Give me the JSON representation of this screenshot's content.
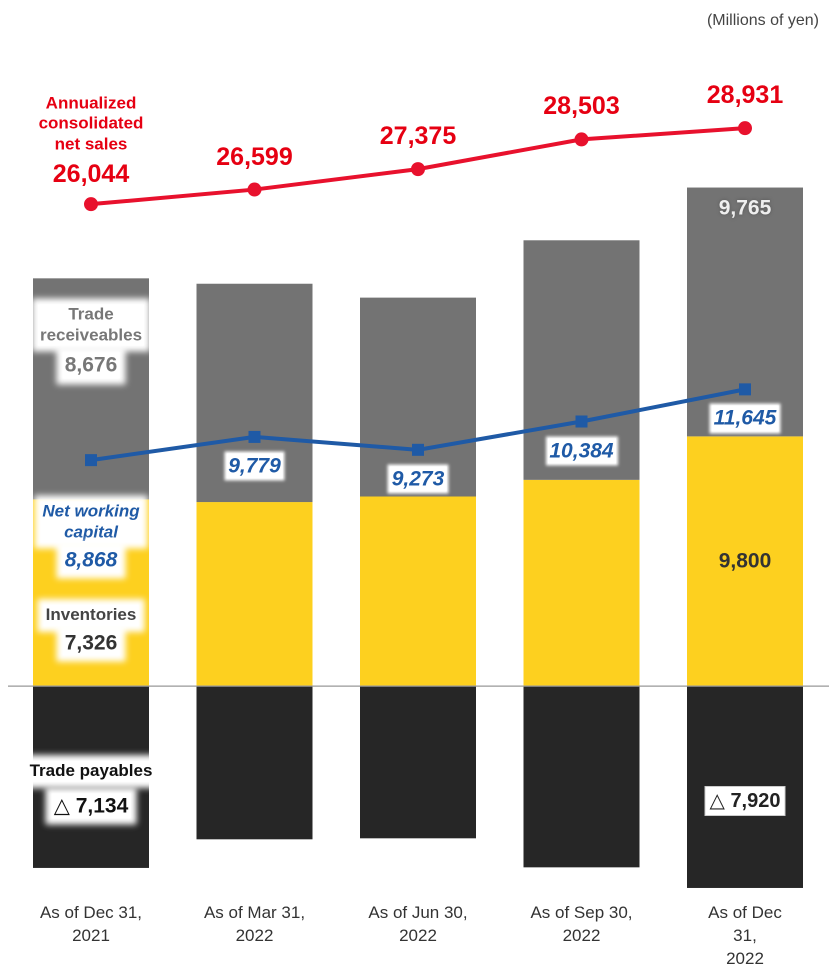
{
  "chart_data": {
    "type": "bar",
    "unit": "(Millions of yen)",
    "categories": [
      "As of Dec 31,\n2021",
      "As of Mar 31,\n2022",
      "As of Jun 30,\n2022",
      "As of Sep 30,\n2022",
      "As of Dec 31,\n2022"
    ],
    "ylim": [
      -8000,
      23000
    ],
    "y2lim": [
      0,
      30000
    ],
    "stacked": true,
    "series": [
      {
        "name": "Inventories",
        "type": "bar",
        "color": "#fdd01f",
        "values": [
          7326,
          7223,
          7441,
          8094,
          9800
        ],
        "value_labels": [
          "7,326",
          null,
          null,
          null,
          "9,800"
        ]
      },
      {
        "name": "Trade\nreceiveables",
        "type": "bar",
        "color": "#737373",
        "values": [
          8676,
          8567,
          7804,
          9401,
          9765
        ],
        "value_labels": [
          "8,676",
          null,
          null,
          null,
          "9,765"
        ]
      },
      {
        "name": "Trade payables",
        "type": "bar",
        "color": "#262626",
        "values": [
          -7134,
          -6011,
          -5972,
          -7111,
          -7920
        ],
        "value_labels": [
          "△ 7,134",
          null,
          null,
          null,
          "△ 7,920"
        ]
      },
      {
        "name": "Net working\ncapital",
        "type": "line",
        "color": "#1f5aa6",
        "values": [
          8868,
          9779,
          9273,
          10384,
          11645
        ],
        "value_labels": [
          "8,868",
          "9,779",
          "9,273",
          "10,384",
          "11,645"
        ]
      },
      {
        "name": "Annualized\nconsolidated\nnet sales",
        "type": "line",
        "axis": "y2",
        "color": "#e8112d",
        "values": [
          26044,
          26599,
          27375,
          28503,
          28931
        ],
        "value_labels": [
          "26,044",
          "26,599",
          "27,375",
          "28,503",
          "28,931"
        ]
      }
    ]
  }
}
